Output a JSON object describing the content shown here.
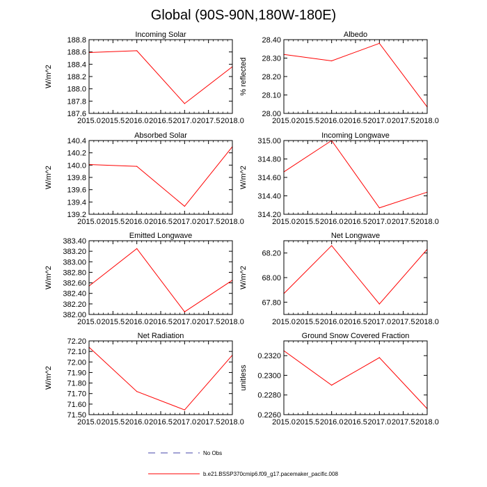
{
  "figure": {
    "title": "Global (90S-90N,180W-180E)",
    "line_color": "#ff0000",
    "obs_color": "#4444aa"
  },
  "legend": {
    "obs_label": "No Obs",
    "model_label": "b.e21.BSSP370cmip6.f09_g17.pacemaker_pacific.008"
  },
  "chart_data": [
    {
      "type": "line",
      "title": "Incoming Solar",
      "ylabel": "W/m^2",
      "x": [
        2015.0,
        2016.0,
        2017.0,
        2018.0
      ],
      "values": [
        188.59,
        188.62,
        187.76,
        188.36
      ],
      "xlim": [
        2015.0,
        2018.0
      ],
      "ylim": [
        187.6,
        188.8
      ],
      "xticks": [
        "2015.0",
        "2015.5",
        "2016.0",
        "2016.5",
        "2017.0",
        "2017.5",
        "2018.0"
      ],
      "yticks": [
        {
          "v": 187.6,
          "label": "187.6"
        },
        {
          "v": 187.8,
          "label": "187.8"
        },
        {
          "v": 188.0,
          "label": "188.0"
        },
        {
          "v": 188.2,
          "label": "188.2"
        },
        {
          "v": 188.4,
          "label": "188.4"
        },
        {
          "v": 188.6,
          "label": "188.6"
        },
        {
          "v": 188.8,
          "label": "188.8"
        }
      ]
    },
    {
      "type": "line",
      "title": "Albedo",
      "ylabel": "% reflected",
      "x": [
        2015.0,
        2016.0,
        2017.0,
        2018.0
      ],
      "values": [
        28.32,
        28.285,
        28.38,
        28.035
      ],
      "xlim": [
        2015.0,
        2018.0
      ],
      "ylim": [
        28.0,
        28.4
      ],
      "xticks": [
        "2015.0",
        "2015.5",
        "2016.0",
        "2016.5",
        "2017.0",
        "2017.5",
        "2018.0"
      ],
      "yticks": [
        {
          "v": 28.0,
          "label": "28.00"
        },
        {
          "v": 28.1,
          "label": "28.10"
        },
        {
          "v": 28.2,
          "label": "28.20"
        },
        {
          "v": 28.3,
          "label": "28.30"
        },
        {
          "v": 28.4,
          "label": "28.40"
        }
      ]
    },
    {
      "type": "line",
      "title": "Absorbed Solar",
      "ylabel": "W/m^2",
      "x": [
        2015.0,
        2016.0,
        2017.0,
        2018.0
      ],
      "values": [
        140.01,
        139.98,
        139.33,
        140.3
      ],
      "xlim": [
        2015.0,
        2018.0
      ],
      "ylim": [
        139.2,
        140.4
      ],
      "xticks": [
        "2015.0",
        "2015.5",
        "2016.0",
        "2016.5",
        "2017.0",
        "2017.5",
        "2018.0"
      ],
      "yticks": [
        {
          "v": 139.2,
          "label": "139.2"
        },
        {
          "v": 139.4,
          "label": "139.4"
        },
        {
          "v": 139.6,
          "label": "139.6"
        },
        {
          "v": 139.8,
          "label": "139.8"
        },
        {
          "v": 140.0,
          "label": "140.0"
        },
        {
          "v": 140.2,
          "label": "140.2"
        },
        {
          "v": 140.4,
          "label": "140.4"
        }
      ]
    },
    {
      "type": "line",
      "title": "Incoming Longwave",
      "ylabel": "W/m^2",
      "x": [
        2015.0,
        2016.0,
        2017.0,
        2018.0
      ],
      "values": [
        314.66,
        315.0,
        314.27,
        314.44
      ],
      "xlim": [
        2015.0,
        2018.0
      ],
      "ylim": [
        314.2,
        315.0
      ],
      "xticks": [
        "2015.0",
        "2015.5",
        "2016.0",
        "2016.5",
        "2017.0",
        "2017.5",
        "2018.0"
      ],
      "yticks": [
        {
          "v": 314.2,
          "label": "314.20"
        },
        {
          "v": 314.4,
          "label": "314.40"
        },
        {
          "v": 314.6,
          "label": "314.60"
        },
        {
          "v": 314.8,
          "label": "314.80"
        },
        {
          "v": 315.0,
          "label": "315.00"
        }
      ]
    },
    {
      "type": "line",
      "title": "Emitted Longwave",
      "ylabel": "W/m^2",
      "x": [
        2015.0,
        2016.0,
        2017.0,
        2018.0
      ],
      "values": [
        382.54,
        383.25,
        382.05,
        382.65
      ],
      "xlim": [
        2015.0,
        2018.0
      ],
      "ylim": [
        382.0,
        383.4
      ],
      "xticks": [
        "2015.0",
        "2015.5",
        "2016.0",
        "2016.5",
        "2017.0",
        "2017.5",
        "2018.0"
      ],
      "yticks": [
        {
          "v": 382.0,
          "label": "382.00"
        },
        {
          "v": 382.2,
          "label": "382.20"
        },
        {
          "v": 382.4,
          "label": "382.40"
        },
        {
          "v": 382.6,
          "label": "382.60"
        },
        {
          "v": 382.8,
          "label": "382.80"
        },
        {
          "v": 383.0,
          "label": "383.00"
        },
        {
          "v": 383.2,
          "label": "383.20"
        },
        {
          "v": 383.4,
          "label": "383.40"
        }
      ]
    },
    {
      "type": "line",
      "title": "Net Longwave",
      "ylabel": "W/m^2",
      "x": [
        2015.0,
        2016.0,
        2017.0,
        2018.0
      ],
      "values": [
        67.87,
        68.26,
        67.785,
        68.23
      ],
      "xlim": [
        2015.0,
        2018.0
      ],
      "ylim": [
        67.7,
        68.3
      ],
      "xticks": [
        "2015.0",
        "2015.5",
        "2016.0",
        "2016.5",
        "2017.0",
        "2017.5",
        "2018.0"
      ],
      "yticks": [
        {
          "v": 67.8,
          "label": "67.80"
        },
        {
          "v": 68.0,
          "label": "68.00"
        },
        {
          "v": 68.2,
          "label": "68.20"
        }
      ]
    },
    {
      "type": "line",
      "title": "Net Radiation",
      "ylabel": "W/m^2",
      "x": [
        2015.0,
        2016.0,
        2017.0,
        2018.0
      ],
      "values": [
        72.14,
        71.72,
        71.545,
        72.065
      ],
      "xlim": [
        2015.0,
        2018.0
      ],
      "ylim": [
        71.5,
        72.2
      ],
      "xticks": [
        "2015.0",
        "2015.5",
        "2016.0",
        "2016.5",
        "2017.0",
        "2017.5",
        "2018.0"
      ],
      "yticks": [
        {
          "v": 71.5,
          "label": "71.50"
        },
        {
          "v": 71.6,
          "label": "71.60"
        },
        {
          "v": 71.7,
          "label": "71.70"
        },
        {
          "v": 71.8,
          "label": "71.80"
        },
        {
          "v": 71.9,
          "label": "71.90"
        },
        {
          "v": 72.0,
          "label": "72.00"
        },
        {
          "v": 72.1,
          "label": "72.10"
        },
        {
          "v": 72.2,
          "label": "72.20"
        }
      ]
    },
    {
      "type": "line",
      "title": "Ground Snow Covered Fraction",
      "ylabel": "unitless",
      "x": [
        2015.0,
        2016.0,
        2017.0,
        2018.0
      ],
      "values": [
        0.2325,
        0.229,
        0.2318,
        0.2266
      ],
      "xlim": [
        2015.0,
        2018.0
      ],
      "ylim": [
        0.226,
        0.2335
      ],
      "xticks": [
        "2015.0",
        "2015.5",
        "2016.0",
        "2016.5",
        "2017.0",
        "2017.5",
        "2018.0"
      ],
      "yticks": [
        {
          "v": 0.226,
          "label": "0.2260"
        },
        {
          "v": 0.228,
          "label": "0.2280"
        },
        {
          "v": 0.23,
          "label": "0.2300"
        },
        {
          "v": 0.232,
          "label": "0.2320"
        }
      ]
    }
  ]
}
